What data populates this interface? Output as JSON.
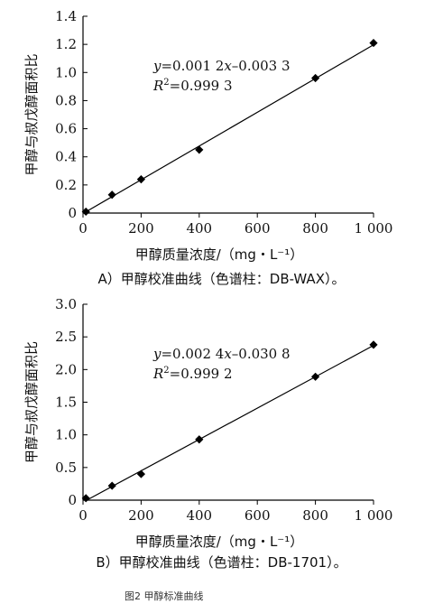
{
  "figure_caption": "图2 甲醇标准曲线",
  "chart_data": [
    {
      "type": "scatter",
      "panel_label": "A）甲醇校准曲线（色谱柱：DB-WAX）。",
      "xlabel": "甲醇质量浓度/（mg・L⁻¹）",
      "ylabel": "甲醇与叔戊醇面积比",
      "xlim": [
        0,
        1000
      ],
      "ylim": [
        0,
        1.4
      ],
      "xticks": [
        0,
        200,
        400,
        600,
        800,
        1000
      ],
      "xtick_labels": [
        "0",
        "200",
        "400",
        "600",
        "800",
        "1 000"
      ],
      "yticks": [
        0,
        0.2,
        0.4,
        0.6,
        0.8,
        1.0,
        1.2,
        1.4
      ],
      "ytick_labels": [
        "0",
        "0.2",
        "0.4",
        "0.6",
        "0.8",
        "1.0",
        "1.2",
        "1.4"
      ],
      "equation": {
        "prefix": "y",
        "body": "=0.001 2",
        "var": "x",
        "rest": "–0.003 3"
      },
      "r2": {
        "label": "R",
        "sup": "2",
        "value": "=0.999 3"
      },
      "fit": {
        "slope": 0.0012,
        "intercept": -0.0033
      },
      "points": [
        {
          "x": 10,
          "y": 0.01
        },
        {
          "x": 100,
          "y": 0.13
        },
        {
          "x": 200,
          "y": 0.24
        },
        {
          "x": 400,
          "y": 0.45
        },
        {
          "x": 800,
          "y": 0.96
        },
        {
          "x": 1000,
          "y": 1.21
        }
      ]
    },
    {
      "type": "scatter",
      "panel_label": "B）甲醇校准曲线（色谱柱：DB-1701）。",
      "xlabel": "甲醇质量浓度/（mg・L⁻¹）",
      "ylabel": "甲醇与叔戊醇面积比",
      "xlim": [
        0,
        1000
      ],
      "ylim": [
        0,
        3.0
      ],
      "xticks": [
        0,
        200,
        400,
        600,
        800,
        1000
      ],
      "xtick_labels": [
        "0",
        "200",
        "400",
        "600",
        "800",
        "1 000"
      ],
      "yticks": [
        0,
        0.5,
        1.0,
        1.5,
        2.0,
        2.5,
        3.0
      ],
      "ytick_labels": [
        "0",
        "0.5",
        "1.0",
        "1.5",
        "2.0",
        "2.5",
        "3.0"
      ],
      "equation": {
        "prefix": "y",
        "body": "=0.002 4",
        "var": "x",
        "rest": "–0.030 8"
      },
      "r2": {
        "label": "R",
        "sup": "2",
        "value": "=0.999 2"
      },
      "fit": {
        "slope": 0.0024,
        "intercept": -0.0308
      },
      "points": [
        {
          "x": 10,
          "y": 0.03
        },
        {
          "x": 100,
          "y": 0.22
        },
        {
          "x": 200,
          "y": 0.4
        },
        {
          "x": 400,
          "y": 0.93
        },
        {
          "x": 800,
          "y": 1.89
        },
        {
          "x": 1000,
          "y": 2.38
        }
      ]
    }
  ]
}
